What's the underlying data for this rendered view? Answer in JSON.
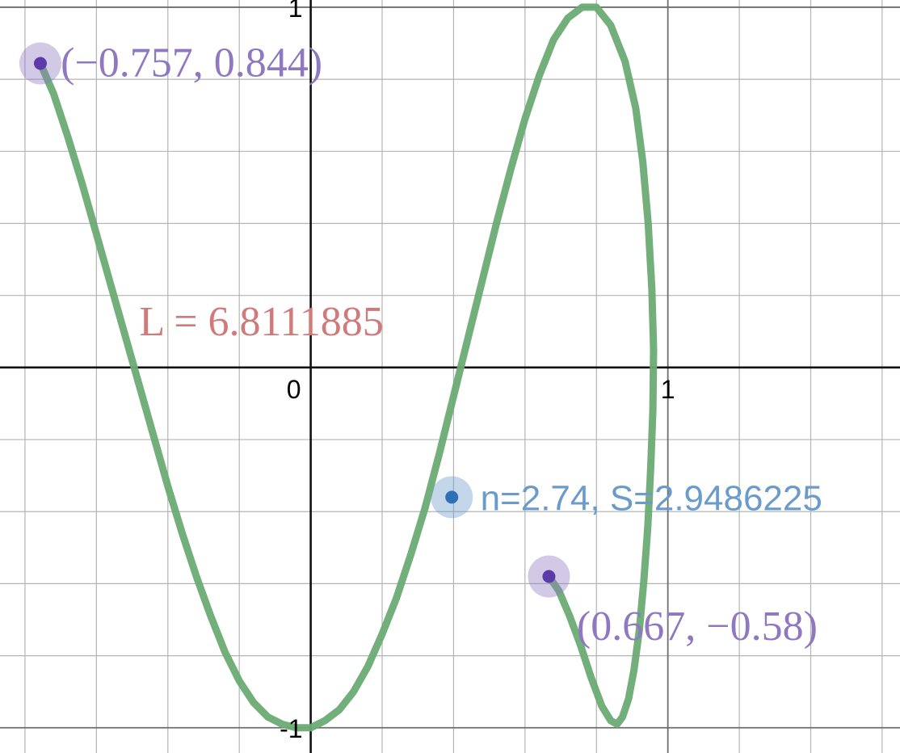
{
  "chart_data": {
    "type": "line",
    "title": "",
    "xlabel": "",
    "ylabel": "",
    "xlim": [
      -0.87,
      1.65
    ],
    "ylim": [
      -1.07,
      1.02
    ],
    "grid": true,
    "minor_step": 0.2,
    "tick_labels": {
      "origin": "0",
      "x_one": "1",
      "y_one": "1",
      "y_minus_one": "-1"
    },
    "series": [
      {
        "color": "#6aab73",
        "points": [
          [
            -0.757,
            0.844
          ],
          [
            -0.72,
            0.76
          ],
          [
            -0.68,
            0.64
          ],
          [
            -0.64,
            0.51
          ],
          [
            -0.6,
            0.37
          ],
          [
            -0.56,
            0.23
          ],
          [
            -0.52,
            0.09
          ],
          [
            -0.48,
            -0.05
          ],
          [
            -0.44,
            -0.19
          ],
          [
            -0.4,
            -0.33
          ],
          [
            -0.36,
            -0.46
          ],
          [
            -0.32,
            -0.58
          ],
          [
            -0.28,
            -0.69
          ],
          [
            -0.24,
            -0.79
          ],
          [
            -0.2,
            -0.87
          ],
          [
            -0.16,
            -0.93
          ],
          [
            -0.12,
            -0.97
          ],
          [
            -0.08,
            -0.99
          ],
          [
            -0.04,
            -1.0
          ],
          [
            0.0,
            -1.0
          ],
          [
            0.04,
            -0.98
          ],
          [
            0.08,
            -0.95
          ],
          [
            0.12,
            -0.9
          ],
          [
            0.16,
            -0.83
          ],
          [
            0.2,
            -0.74
          ],
          [
            0.24,
            -0.64
          ],
          [
            0.28,
            -0.52
          ],
          [
            0.32,
            -0.39
          ],
          [
            0.36,
            -0.24
          ],
          [
            0.4,
            -0.08
          ],
          [
            0.44,
            0.08
          ],
          [
            0.48,
            0.24
          ],
          [
            0.52,
            0.4
          ],
          [
            0.56,
            0.55
          ],
          [
            0.6,
            0.69
          ],
          [
            0.64,
            0.81
          ],
          [
            0.68,
            0.91
          ],
          [
            0.72,
            0.97
          ],
          [
            0.76,
            1.0
          ],
          [
            0.8,
            1.0
          ],
          [
            0.84,
            0.95
          ],
          [
            0.88,
            0.85
          ],
          [
            0.91,
            0.72
          ],
          [
            0.93,
            0.57
          ],
          [
            0.945,
            0.4
          ],
          [
            0.955,
            0.22
          ],
          [
            0.96,
            0.05
          ],
          [
            0.958,
            -0.12
          ],
          [
            0.952,
            -0.28
          ],
          [
            0.944,
            -0.44
          ],
          [
            0.933,
            -0.59
          ],
          [
            0.92,
            -0.73
          ],
          [
            0.905,
            -0.84
          ],
          [
            0.89,
            -0.92
          ],
          [
            0.873,
            -0.97
          ],
          [
            0.858,
            -0.99
          ],
          [
            0.84,
            -0.98
          ],
          [
            0.815,
            -0.94
          ],
          [
            0.785,
            -0.86
          ],
          [
            0.755,
            -0.77
          ],
          [
            0.725,
            -0.69
          ],
          [
            0.695,
            -0.62
          ],
          [
            0.667,
            -0.58
          ]
        ]
      }
    ],
    "points": [
      {
        "x": -0.757,
        "y": 0.844,
        "color": "#8e78c0",
        "dot": "#5b3ba8"
      },
      {
        "x": 0.667,
        "y": -0.58,
        "color": "#8e78c0",
        "dot": "#5b3ba8"
      },
      {
        "x": 0.395,
        "y": -0.36,
        "color": "#6b9bcb",
        "dot": "#2f6fb5"
      }
    ],
    "annotations": [
      {
        "text": "(−0.757, 0.844)",
        "x": -0.7,
        "y": 0.844,
        "color": "#8e78c0",
        "style": "math",
        "anchor": "start"
      },
      {
        "text": "(0.667, −0.58)",
        "x": 0.745,
        "y": -0.72,
        "color": "#8e78c0",
        "style": "math",
        "anchor": "start"
      },
      {
        "text": "L = 6.8111885",
        "x": -0.48,
        "y": 0.125,
        "color": "#d07a7a",
        "style": "math",
        "anchor": "start"
      },
      {
        "text": "n=2.74, S=2.9486225",
        "x": 0.475,
        "y": -0.36,
        "color": "#6b9bcb",
        "style": "sans",
        "anchor": "start"
      }
    ]
  }
}
